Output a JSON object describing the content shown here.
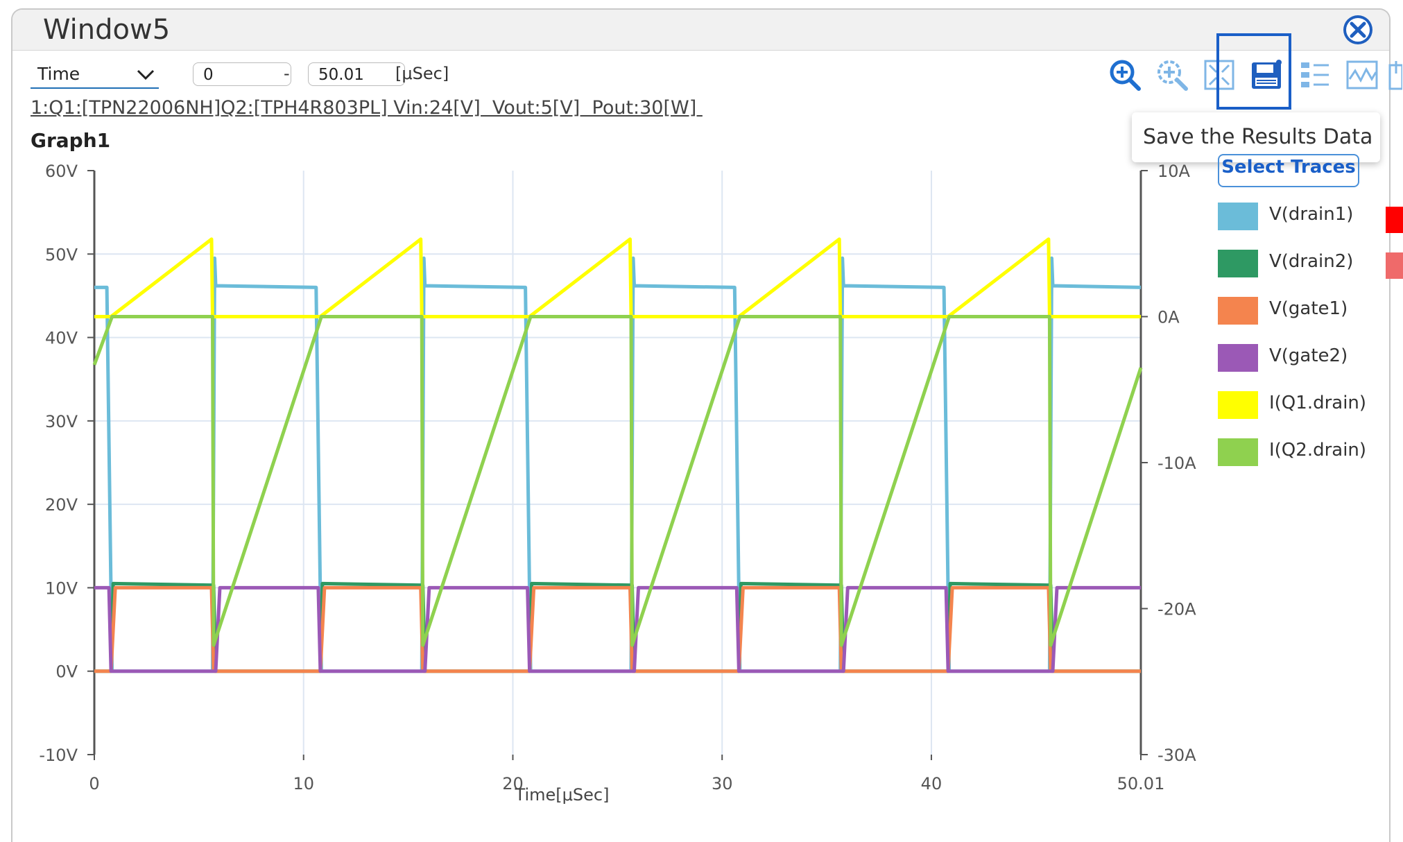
{
  "window": {
    "title": "Window5"
  },
  "controls": {
    "axis_select": "Time",
    "range_start": "0",
    "range_end": "50.01",
    "range_sep": "-",
    "range_unit": "[μSec]"
  },
  "subtitle": "1:Q1:[TPN22006NH]Q2:[TPH4R803PL] Vin:24[V]  Vout:5[V]  Pout:30[W] ",
  "graph_title": "Graph1",
  "tooltip": "Save the Results Data",
  "select_traces_label": "Select Traces",
  "toolbar_icons": [
    "zoom-in-icon",
    "zoom-select-icon",
    "fit-view-icon",
    "save-results-icon",
    "trace-settings-icon",
    "waveform-icon",
    "export-icon"
  ],
  "legend": [
    {
      "label": "V(drain1)",
      "color": "#6bbcd9"
    },
    {
      "label": "V(drain2)",
      "color": "#2e9963"
    },
    {
      "label": "V(gate1)",
      "color": "#f4844e"
    },
    {
      "label": "V(gate2)",
      "color": "#9b59b6"
    },
    {
      "label": "I(Q1.drain)",
      "color": "#ffff00"
    },
    {
      "label": "I(Q2.drain)",
      "color": "#8fd14f"
    }
  ],
  "chart_data": {
    "type": "line",
    "title": "Graph1",
    "xlabel": "Time[μSec]",
    "ylabel": "",
    "xlim": [
      0,
      50.01
    ],
    "ylim": [
      -10,
      60
    ],
    "y2lim": [
      -30,
      10
    ],
    "x_ticks": [
      "0",
      "10",
      "20",
      "30",
      "40",
      "50.01"
    ],
    "y_ticks": [
      "60V",
      "50V",
      "40V",
      "30V",
      "20V",
      "10V",
      "0V",
      "-10V"
    ],
    "y2_ticks": [
      "10A",
      "0A",
      "-10A",
      "-20A",
      "-30A"
    ],
    "grid": true,
    "period_us": 10,
    "series": [
      {
        "name": "V(drain1)",
        "axis": "left",
        "color": "#6bbcd9",
        "x": [
          0,
          0.6,
          0.85,
          5.65,
          5.75,
          5.8,
          10.6,
          10.85,
          15.65,
          15.75,
          15.8,
          20.6,
          20.85,
          25.65,
          25.75,
          25.8,
          30.6,
          30.85,
          35.65,
          35.75,
          35.8,
          40.6,
          40.85,
          45.65,
          45.75,
          45.8,
          50.01
        ],
        "y": [
          46,
          46,
          0,
          0,
          49.5,
          46.2,
          46,
          0,
          0,
          49.5,
          46.2,
          46,
          0,
          0,
          49.5,
          46.2,
          46,
          0,
          0,
          49.5,
          46.2,
          46,
          0,
          0,
          49.5,
          46.2,
          46
        ]
      },
      {
        "name": "V(drain2)",
        "axis": "left",
        "color": "#2e9963",
        "x": [
          0,
          0.8,
          0.9,
          5.7,
          5.8,
          10.8,
          10.9,
          15.7,
          15.8,
          20.8,
          20.9,
          25.7,
          25.8,
          30.8,
          30.9,
          35.7,
          35.8,
          40.8,
          40.9,
          45.7,
          45.8,
          50.01
        ],
        "y": [
          0,
          0,
          10.5,
          10.3,
          0,
          0,
          10.5,
          10.3,
          0,
          0,
          10.5,
          10.3,
          0,
          0,
          10.5,
          10.3,
          0,
          0,
          10.5,
          10.3,
          0,
          0
        ]
      },
      {
        "name": "V(gate1)",
        "axis": "left",
        "color": "#f4844e",
        "x": [
          0,
          0.8,
          1.0,
          5.6,
          5.7,
          10.8,
          11.0,
          15.6,
          15.7,
          20.8,
          21.0,
          25.6,
          25.7,
          30.8,
          31.0,
          35.6,
          35.7,
          40.8,
          41.0,
          45.6,
          45.7,
          50.01
        ],
        "y": [
          0,
          0,
          10,
          10,
          0,
          0,
          10,
          10,
          0,
          0,
          10,
          10,
          0,
          0,
          10,
          10,
          0,
          0,
          10,
          10,
          0,
          0
        ]
      },
      {
        "name": "V(gate2)",
        "axis": "left",
        "color": "#9b59b6",
        "x": [
          0,
          0.7,
          0.8,
          5.8,
          6.0,
          10.7,
          10.8,
          15.8,
          16.0,
          20.7,
          20.8,
          25.8,
          26.0,
          30.7,
          30.8,
          35.8,
          36.0,
          40.7,
          40.8,
          45.8,
          46.0,
          50.01
        ],
        "y": [
          10,
          10,
          0,
          0,
          10,
          10,
          0,
          0,
          10,
          10,
          0,
          0,
          10,
          10,
          0,
          0,
          10,
          10,
          0,
          0,
          10,
          10
        ]
      },
      {
        "name": "I(Q1.drain)",
        "axis": "right",
        "color": "#ffff00",
        "x": [
          0,
          0.8,
          5.6,
          5.65,
          10.8,
          15.6,
          15.65,
          20.8,
          25.6,
          25.65,
          30.8,
          35.6,
          35.65,
          40.8,
          45.6,
          45.65,
          50.01
        ],
        "y": [
          0,
          0,
          5.3,
          0,
          0,
          5.3,
          0,
          0,
          5.3,
          0,
          0,
          5.3,
          0,
          0,
          5.3,
          0,
          0
        ]
      },
      {
        "name": "I(Q2.drain)",
        "axis": "right",
        "color": "#8fd14f",
        "x": [
          0,
          0.85,
          5.65,
          5.7,
          10.85,
          15.65,
          15.7,
          20.85,
          25.65,
          25.7,
          30.85,
          35.65,
          35.7,
          40.85,
          45.65,
          45.7,
          50.01
        ],
        "y": [
          -3.3,
          0,
          0,
          -22.5,
          0,
          0,
          -22.5,
          0,
          0,
          -22.5,
          0,
          0,
          -22.5,
          0,
          0,
          -22.5,
          -3.5
        ]
      }
    ]
  }
}
